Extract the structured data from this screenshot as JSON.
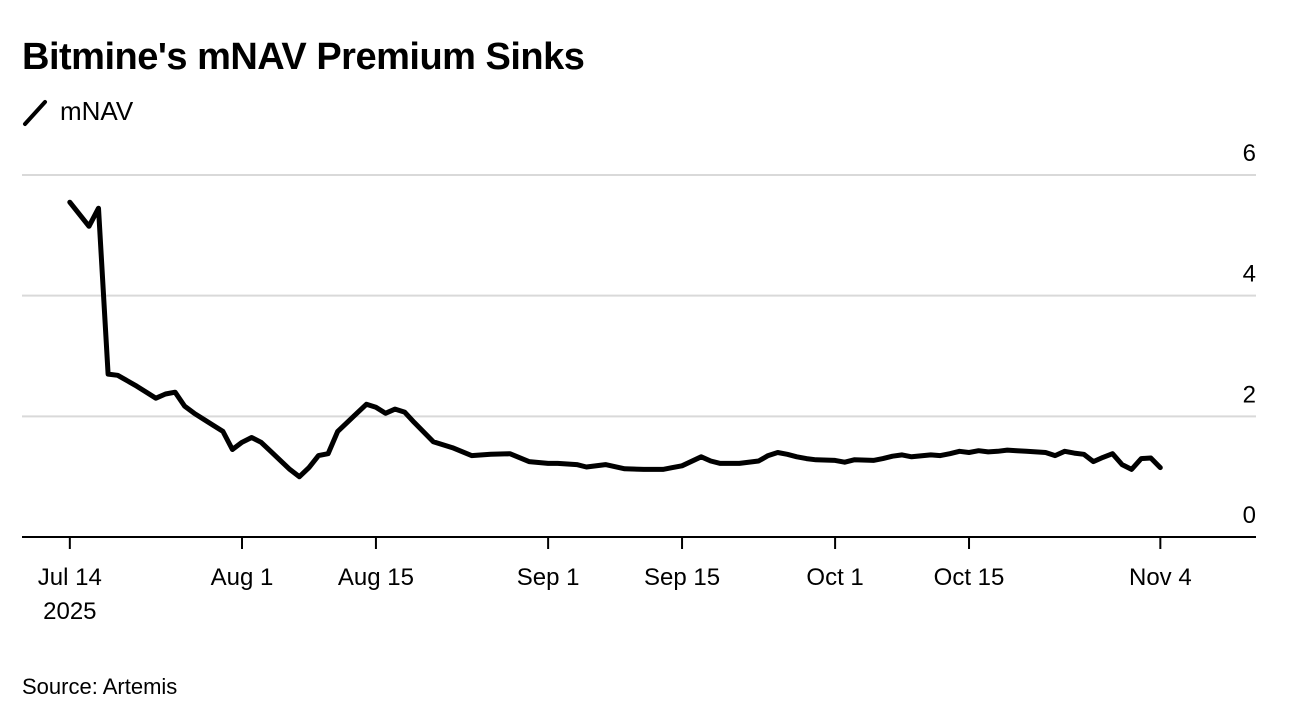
{
  "chart_data": {
    "type": "line",
    "title": "Bitmine's mNAV Premium Sinks",
    "legend": [
      "mNAV"
    ],
    "series": [
      {
        "name": "mNAV",
        "color": "#000000",
        "x": [
          0,
          2,
          3,
          4,
          5,
          7,
          8,
          9,
          10,
          11,
          12,
          13,
          14,
          15,
          16,
          17,
          18,
          19,
          20,
          21,
          22,
          23,
          24,
          25,
          26,
          27,
          28,
          29,
          30,
          31,
          32,
          33,
          34,
          35,
          36,
          38,
          40,
          42,
          44,
          46,
          48,
          50,
          51,
          52,
          53,
          54,
          56,
          58,
          60,
          62,
          63,
          64,
          66,
          67,
          68,
          70,
          72,
          73,
          74,
          75,
          76,
          77,
          78,
          80,
          81,
          82,
          84,
          85,
          86,
          87,
          88,
          90,
          91,
          92,
          93,
          94,
          95,
          96,
          97,
          98,
          99,
          100,
          101,
          102,
          103,
          104,
          105,
          106,
          107,
          108,
          109,
          110,
          111,
          112,
          113,
          114
        ],
        "values": [
          5.55,
          5.15,
          5.45,
          2.7,
          2.68,
          2.5,
          2.4,
          2.3,
          2.37,
          2.4,
          2.17,
          2.05,
          1.95,
          1.85,
          1.75,
          1.45,
          1.57,
          1.65,
          1.57,
          1.42,
          1.27,
          1.12,
          1.0,
          1.15,
          1.35,
          1.38,
          1.75,
          1.9,
          2.05,
          2.2,
          2.15,
          2.05,
          2.12,
          2.07,
          1.9,
          1.58,
          1.48,
          1.35,
          1.37,
          1.38,
          1.25,
          1.22,
          1.22,
          1.21,
          1.2,
          1.16,
          1.2,
          1.13,
          1.12,
          1.12,
          1.15,
          1.18,
          1.33,
          1.26,
          1.22,
          1.22,
          1.26,
          1.35,
          1.4,
          1.37,
          1.33,
          1.3,
          1.28,
          1.27,
          1.24,
          1.28,
          1.27,
          1.3,
          1.34,
          1.36,
          1.33,
          1.36,
          1.35,
          1.38,
          1.42,
          1.4,
          1.43,
          1.41,
          1.42,
          1.44,
          1.43,
          1.42,
          1.41,
          1.4,
          1.35,
          1.42,
          1.39,
          1.37,
          1.25,
          1.32,
          1.38,
          1.2,
          1.12,
          1.3,
          1.31,
          1.15
        ]
      }
    ],
    "x_ticks": [
      {
        "pos": 0,
        "label": "Jul 14",
        "sublabel": "2025"
      },
      {
        "pos": 18,
        "label": "Aug 1"
      },
      {
        "pos": 32,
        "label": "Aug 15"
      },
      {
        "pos": 50,
        "label": "Sep 1"
      },
      {
        "pos": 64,
        "label": "Sep 15"
      },
      {
        "pos": 80,
        "label": "Oct 1"
      },
      {
        "pos": 94,
        "label": "Oct 15"
      },
      {
        "pos": 114,
        "label": "Nov 4"
      }
    ],
    "y_ticks": [
      0,
      2,
      4,
      6
    ],
    "ylim": [
      0,
      6
    ],
    "xlim": [
      -5,
      124
    ],
    "xlabel": "",
    "ylabel": "",
    "grid": true
  },
  "source": "Source: Artemis"
}
